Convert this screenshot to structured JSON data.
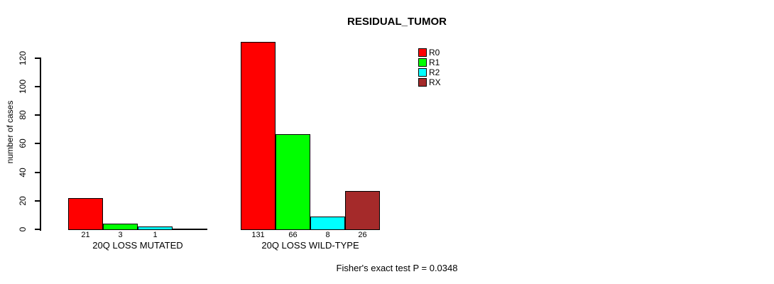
{
  "chart": {
    "title": "RESIDUAL_TUMOR",
    "ylabel": "number of cases",
    "annotation": "Fisher's exact test P = 0.0348"
  },
  "chart_data": {
    "type": "bar",
    "title": "RESIDUAL_TUMOR",
    "xlabel": "",
    "ylabel": "number of cases",
    "categories": [
      "20Q LOSS MUTATED",
      "20Q LOSS WILD-TYPE"
    ],
    "series": [
      {
        "name": "R0",
        "color": "#ff0000",
        "values": [
          21,
          131
        ]
      },
      {
        "name": "R1",
        "color": "#00ff00",
        "values": [
          3,
          66
        ]
      },
      {
        "name": "R2",
        "color": "#00ffff",
        "values": [
          1,
          8
        ]
      },
      {
        "name": "RX",
        "color": "#a52a2a",
        "values": [
          0,
          26
        ]
      }
    ],
    "bar_value_labels": {
      "show": true,
      "hide_zero": true
    },
    "yticks": [
      0,
      20,
      40,
      60,
      80,
      100,
      120
    ],
    "ylim": [
      0,
      131
    ],
    "grid": false,
    "legend": {
      "position": "top-right",
      "entries": [
        "R0",
        "R1",
        "R2",
        "RX"
      ]
    },
    "annotation": "Fisher's exact test P = 0.0348"
  }
}
